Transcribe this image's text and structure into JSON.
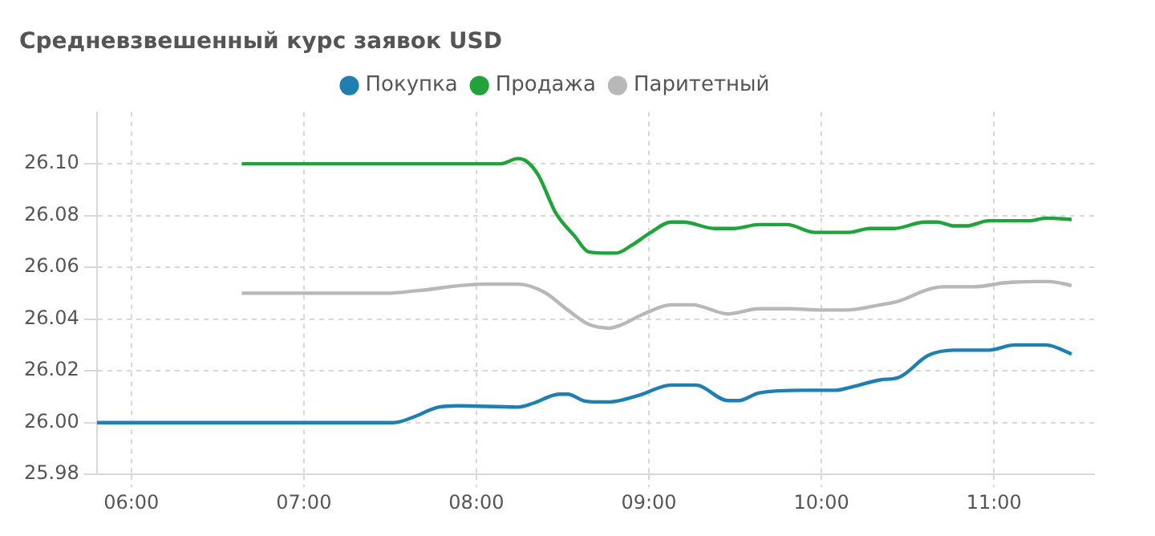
{
  "chart_data": {
    "type": "line",
    "title": "Средневзвешенный курс заявок USD",
    "legend": "top",
    "grid": true,
    "marker": "none",
    "line_style": "solid",
    "xlim": [
      5.8,
      11.58
    ],
    "xticks": [
      {
        "value": 6,
        "label": "06:00"
      },
      {
        "value": 7,
        "label": "07:00"
      },
      {
        "value": 8,
        "label": "08:00"
      },
      {
        "value": 9,
        "label": "09:00"
      },
      {
        "value": 10,
        "label": "10:00"
      },
      {
        "value": 11,
        "label": "11:00"
      }
    ],
    "ylim": [
      25.98,
      26.12
    ],
    "yticks": [
      {
        "value": 25.98,
        "label": "25.98"
      },
      {
        "value": 26,
        "label": "26.00"
      },
      {
        "value": 26.02,
        "label": "26.02"
      },
      {
        "value": 26.04,
        "label": "26.04"
      },
      {
        "value": 26.06,
        "label": "26.06"
      },
      {
        "value": 26.08,
        "label": "26.08"
      },
      {
        "value": 26.1,
        "label": "26.10"
      }
    ],
    "series": [
      {
        "name": "Покупка",
        "color": "#1f7fb0",
        "x": [
          5.8,
          7.52,
          7.63,
          7.78,
          7.89,
          8.24,
          8.33,
          8.48,
          8.53,
          8.62,
          8.71,
          8.77,
          8.94,
          9.13,
          9.27,
          9.46,
          9.52,
          9.64,
          9.9,
          10.08,
          10.16,
          10.34,
          10.45,
          10.62,
          10.77,
          10.97,
          11.12,
          11.3,
          11.45
        ],
        "values": [
          26.0,
          26.0,
          26.002,
          26.006,
          26.0065,
          26.006,
          26.0075,
          26.011,
          26.011,
          26.0085,
          26.008,
          26.008,
          26.0105,
          26.0145,
          26.0145,
          26.0085,
          26.0085,
          26.0115,
          26.0125,
          26.0125,
          26.0135,
          26.0165,
          26.0175,
          26.026,
          26.028,
          26.028,
          26.03,
          26.03,
          26.0265
        ]
      },
      {
        "name": "Продажа",
        "color": "#1fa33a",
        "x": [
          6.64,
          8.14,
          8.24,
          8.29,
          8.36,
          8.46,
          8.57,
          8.65,
          8.77,
          8.81,
          8.9,
          9.0,
          9.13,
          9.2,
          9.38,
          9.49,
          9.64,
          9.8,
          9.96,
          10.16,
          10.28,
          10.42,
          10.6,
          10.67,
          10.77,
          10.84,
          10.97,
          11.21,
          11.3,
          11.45
        ],
        "values": [
          26.1,
          26.1,
          26.102,
          26.101,
          26.0955,
          26.081,
          26.072,
          26.066,
          26.0655,
          26.0655,
          26.0685,
          26.073,
          26.0775,
          26.0775,
          26.075,
          26.075,
          26.0765,
          26.0765,
          26.0735,
          26.0735,
          26.075,
          26.075,
          26.0775,
          26.0775,
          26.076,
          26.076,
          26.078,
          26.078,
          26.079,
          26.0785
        ]
      },
      {
        "name": "Паритетный",
        "color": "#b8b8b8",
        "x": [
          6.64,
          7.48,
          7.66,
          8.04,
          8.24,
          8.39,
          8.53,
          8.65,
          8.77,
          8.83,
          8.97,
          9.13,
          9.25,
          9.46,
          9.64,
          9.81,
          9.99,
          10.14,
          10.34,
          10.45,
          10.62,
          10.71,
          10.89,
          11.06,
          11.24,
          11.32,
          11.45
        ],
        "values": [
          26.05,
          26.05,
          26.051,
          26.0535,
          26.0535,
          26.0505,
          26.0435,
          26.038,
          26.0365,
          26.0375,
          26.042,
          26.0455,
          26.0455,
          26.042,
          26.044,
          26.044,
          26.0435,
          26.0435,
          26.0455,
          26.047,
          26.0515,
          26.0525,
          26.0525,
          26.054,
          26.0545,
          26.0545,
          26.053
        ]
      }
    ]
  }
}
